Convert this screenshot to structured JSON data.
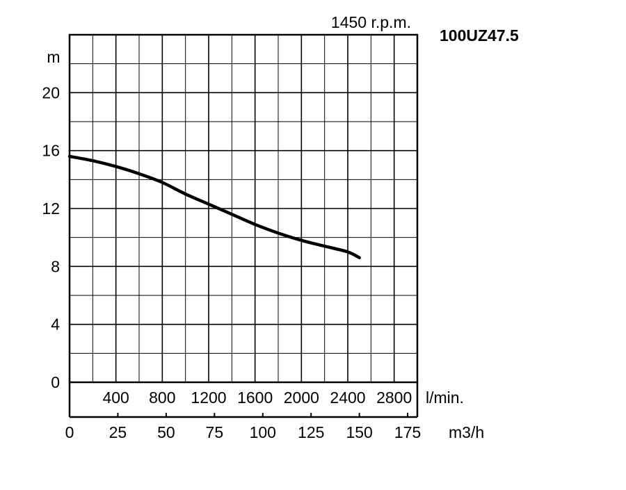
{
  "chart_data": {
    "type": "line",
    "title": "100UZ47.5",
    "subtitle": "1450 r.p.m.",
    "ylabel": "m",
    "ylim": [
      0,
      24
    ],
    "grid": true,
    "y_ticks": [
      "0",
      "4",
      "8",
      "12",
      "16",
      "20"
    ],
    "x_lmin_label": "l/min.",
    "x_lmin_ticks": [
      "400",
      "800",
      "1200",
      "1600",
      "2000",
      "2400",
      "2800"
    ],
    "x_lmin_range": [
      0,
      3000
    ],
    "x_m3h_label": "m3/h",
    "x_m3h_ticks": [
      "0",
      "25",
      "50",
      "75",
      "100",
      "125",
      "150",
      "175"
    ],
    "x_m3h_range": [
      0,
      180
    ],
    "series": [
      {
        "x_unit": "l/min.",
        "x": [
          0,
          200,
          400,
          600,
          800,
          1000,
          1200,
          1400,
          1600,
          1800,
          2000,
          2200,
          2400,
          2500
        ],
        "y": [
          15.6,
          15.3,
          14.9,
          14.4,
          13.8,
          13.0,
          12.3,
          11.6,
          10.9,
          10.3,
          9.8,
          9.4,
          9.0,
          8.6
        ]
      }
    ]
  }
}
